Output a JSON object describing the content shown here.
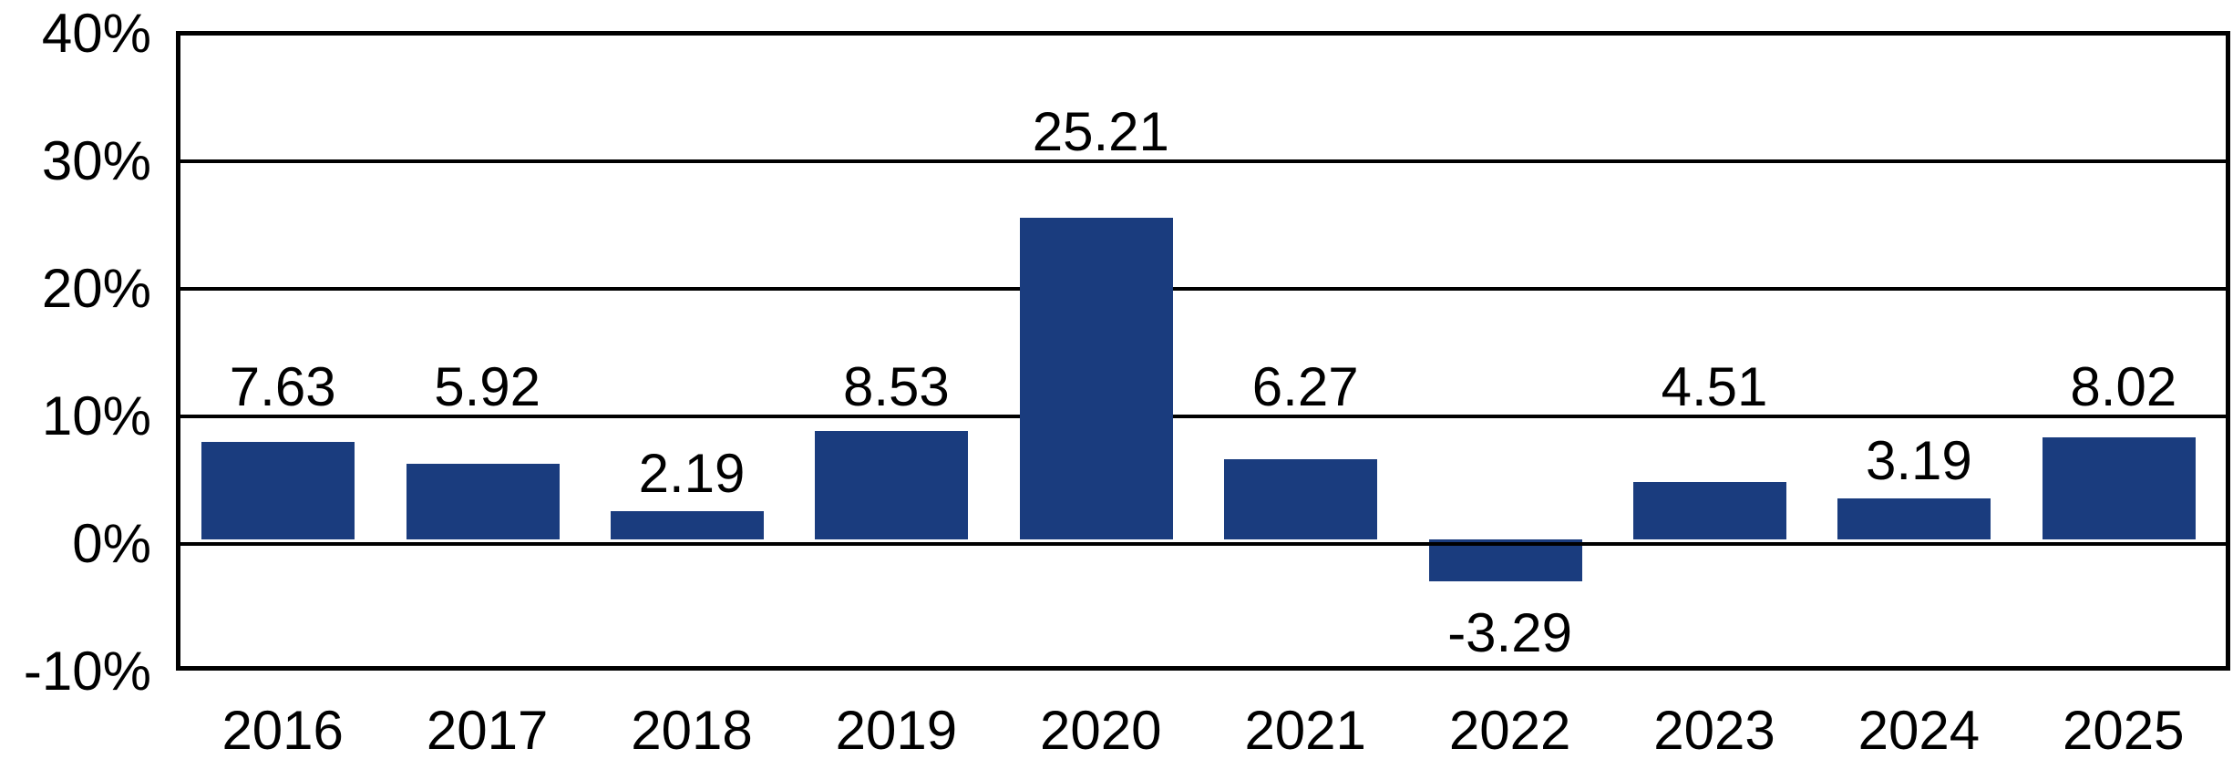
{
  "chart_data": {
    "type": "bar",
    "title": "",
    "xlabel": "",
    "ylabel": "",
    "categories": [
      "2016",
      "2017",
      "2018",
      "2019",
      "2020",
      "2021",
      "2022",
      "2023",
      "2024",
      "2025"
    ],
    "values": [
      7.63,
      5.92,
      2.19,
      8.53,
      25.21,
      6.27,
      -3.29,
      4.51,
      3.19,
      8.02
    ],
    "data_labels": [
      "7.63",
      "5.92",
      "2.19",
      "8.53",
      "25.21",
      "6.27",
      "-3.29",
      "4.51",
      "3.19",
      "8.02"
    ],
    "ylim": [
      -10,
      40
    ],
    "y_ticks": [
      {
        "value": 40,
        "label": "40%"
      },
      {
        "value": 30,
        "label": "30%"
      },
      {
        "value": 20,
        "label": "20%"
      },
      {
        "value": 10,
        "label": "10%"
      },
      {
        "value": 0,
        "label": "0%"
      },
      {
        "value": -10,
        "label": "-10%"
      }
    ],
    "grid": true,
    "legend": "none",
    "colors": {
      "bar": "#1A3C7E",
      "gridline": "#000000",
      "plot_border": "#000000",
      "text": "#000000",
      "background": "#FFFFFF"
    }
  }
}
